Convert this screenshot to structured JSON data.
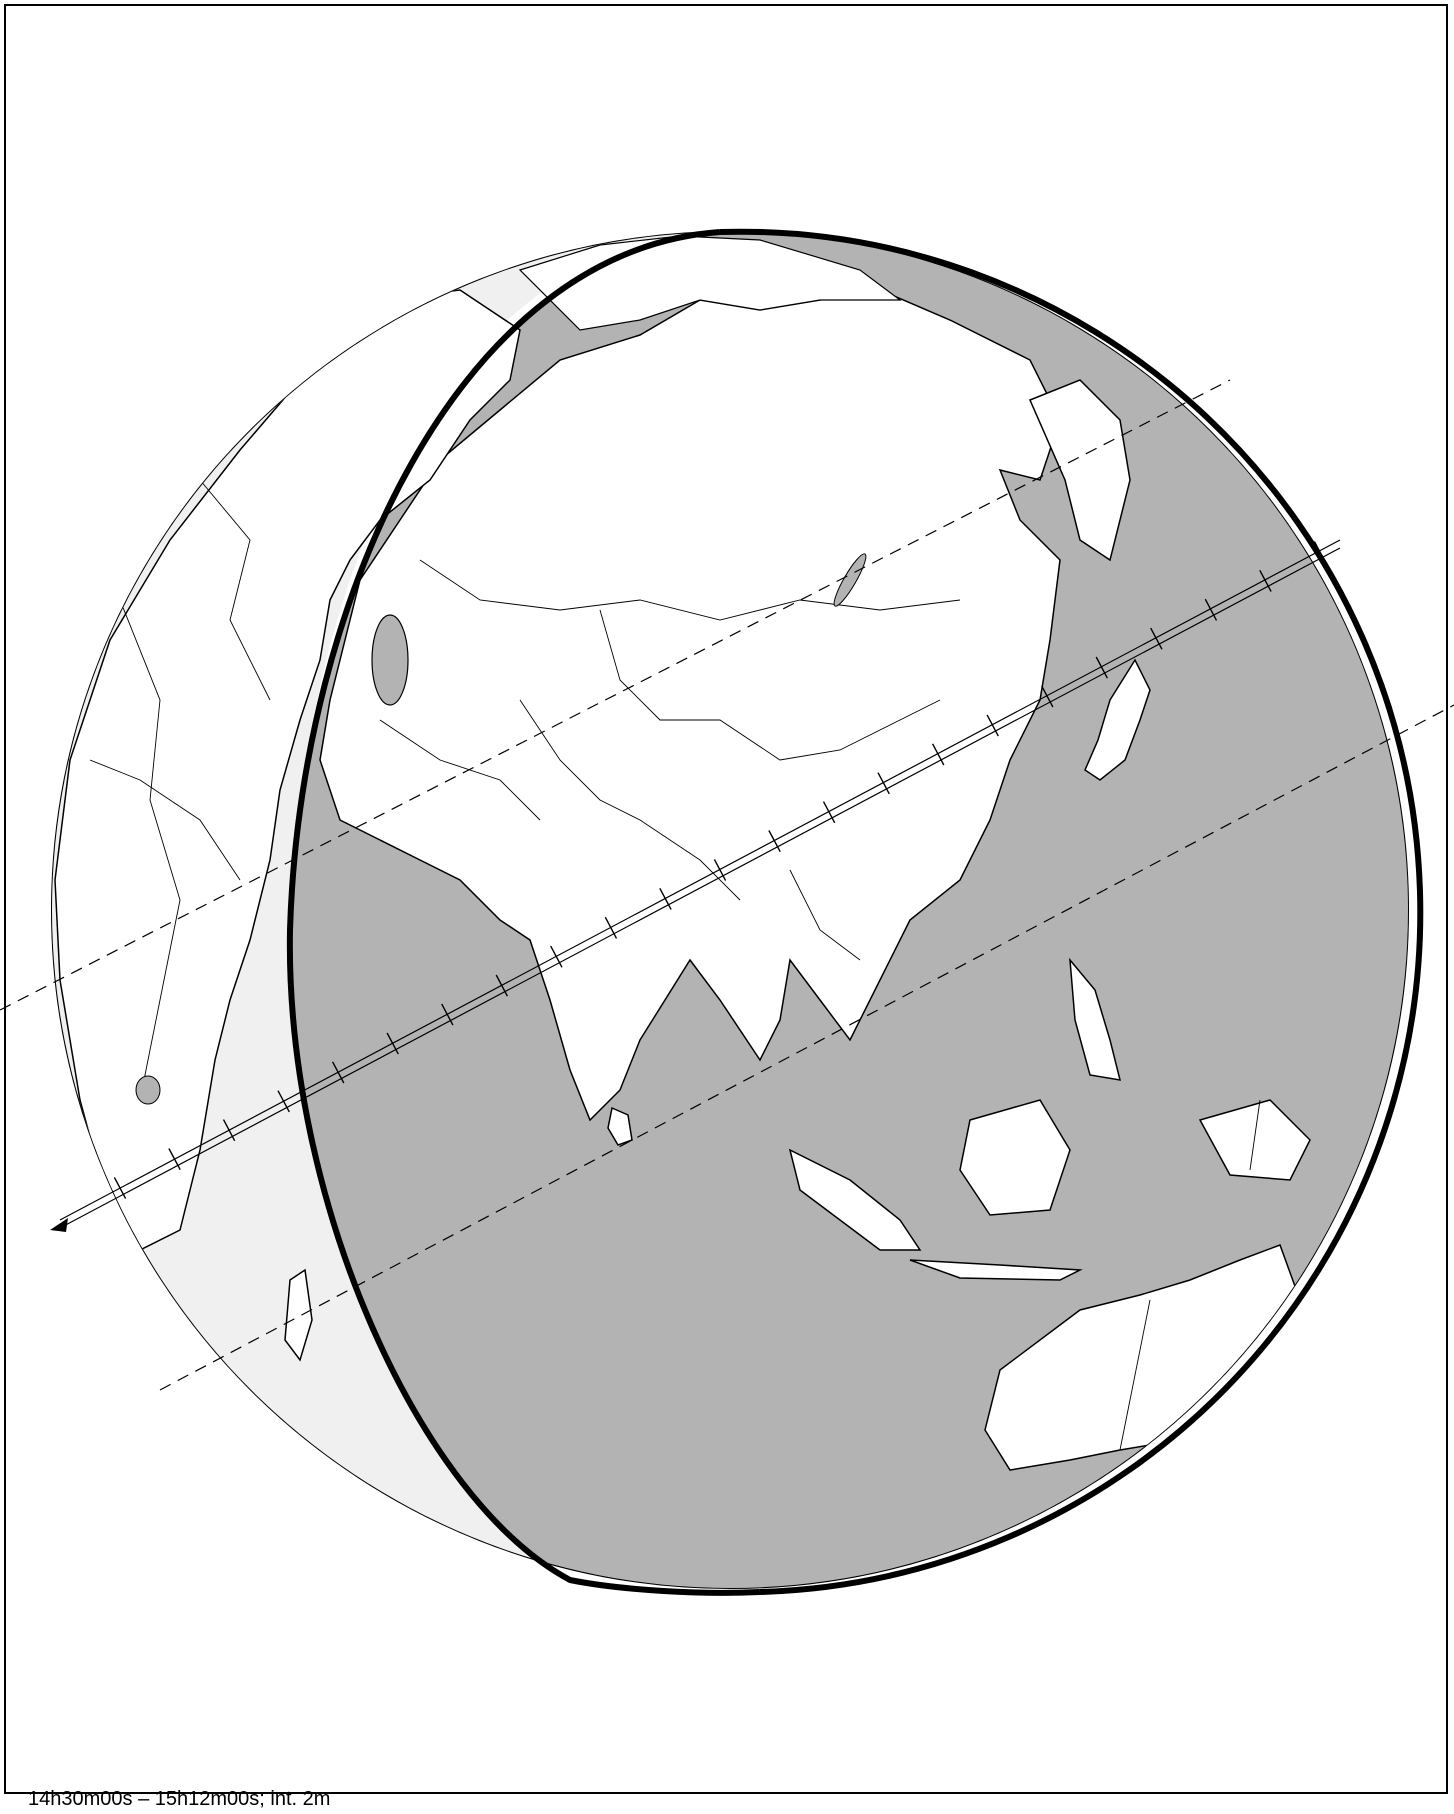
{
  "caption": "14h30m00s – 15h12m00s; int.  2m",
  "colors": {
    "ocean_day": "#ffffff",
    "ocean_shadow": "#b3b3b3",
    "land": "#ffffff",
    "penumbra_zone": "#f0f0f0",
    "outline": "#000000"
  },
  "map_layers": [
    "earth-globe",
    "shadow-region",
    "coastlines",
    "country-borders",
    "terminator-boundary",
    "central-track",
    "northern-limit-dashed",
    "southern-limit-dashed",
    "time-ticks",
    "direction-arrow"
  ]
}
